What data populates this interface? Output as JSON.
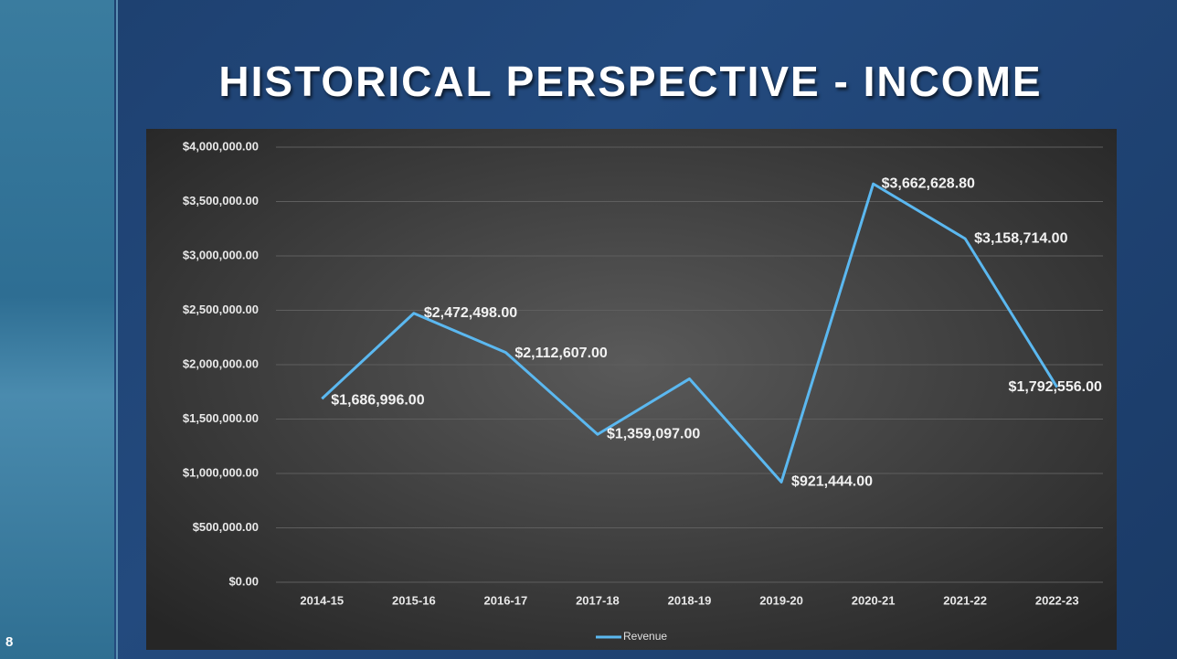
{
  "slide_title": "HISTORICAL PERSPECTIVE - INCOME",
  "page_number": "8",
  "chart_data": {
    "type": "line",
    "categories": [
      "2014-15",
      "2015-16",
      "2016-17",
      "2017-18",
      "2018-19",
      "2019-20",
      "2020-21",
      "2021-22",
      "2022-23"
    ],
    "series": [
      {
        "name": "Revenue",
        "color": "#5bb8f0",
        "values": [
          1686996,
          2472498,
          2112607,
          1359097,
          1870000,
          921444,
          3662628.8,
          3158714,
          1792556
        ],
        "value_labels": [
          "$1,686,996.00",
          "$2,472,498.00",
          "$2,112,607.00",
          "$1,359,097.00",
          null,
          "$921,444.00",
          "$3,662,628.80",
          "$3,158,714.00",
          "$1,792,556.00"
        ]
      }
    ],
    "ylim": [
      0,
      4000000
    ],
    "yticks": [
      {
        "value": 0,
        "label": "$0.00"
      },
      {
        "value": 500000,
        "label": "$500,000.00"
      },
      {
        "value": 1000000,
        "label": "$1,000,000.00"
      },
      {
        "value": 1500000,
        "label": "$1,500,000.00"
      },
      {
        "value": 2000000,
        "label": "$2,000,000.00"
      },
      {
        "value": 2500000,
        "label": "$2,500,000.00"
      },
      {
        "value": 3000000,
        "label": "$3,000,000.00"
      },
      {
        "value": 3500000,
        "label": "$3,500,000.00"
      },
      {
        "value": 4000000,
        "label": "$4,000,000.00"
      }
    ],
    "grid": true,
    "legend": "bottom"
  }
}
